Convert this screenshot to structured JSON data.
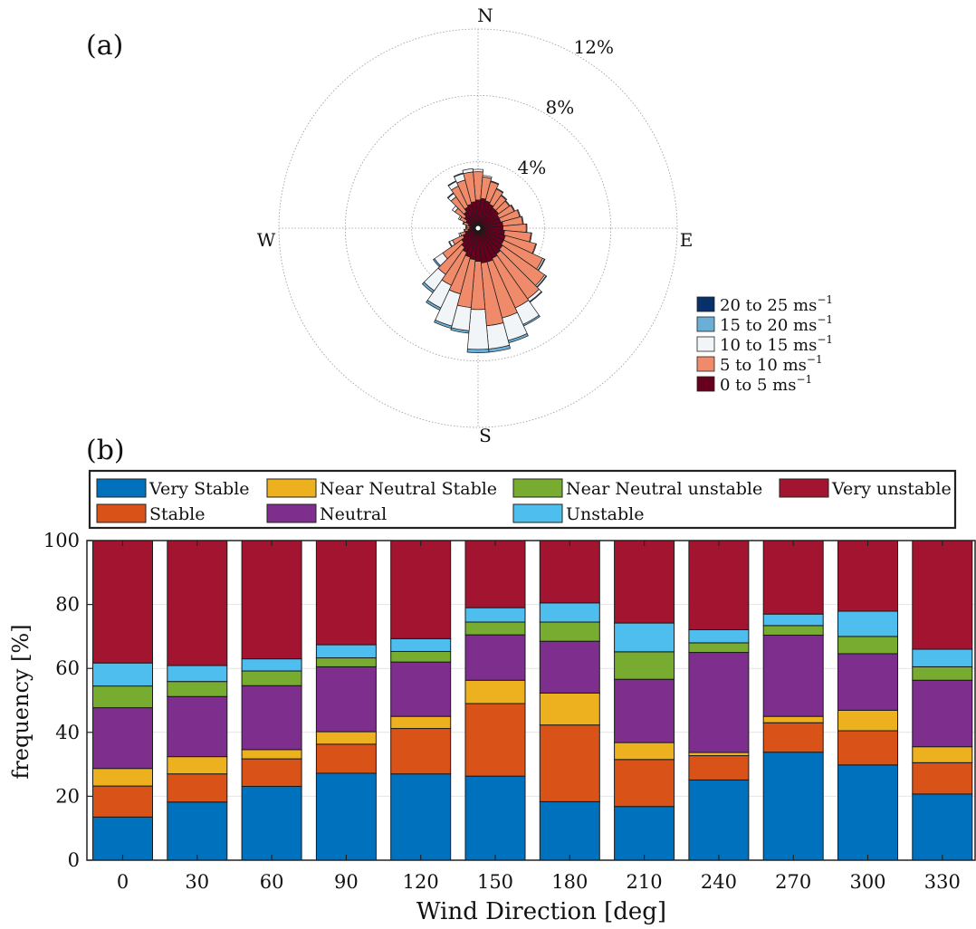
{
  "panel_a_label": "(a)",
  "panel_b_label": "(b)",
  "chart_data": [
    {
      "type": "wind-rose",
      "compass": {
        "north": "N",
        "east": "E",
        "south": "S",
        "west": "W"
      },
      "radial_ticks": [
        4,
        8,
        12
      ],
      "radial_tick_labels": [
        "4%",
        "8%",
        "12%"
      ],
      "radial_max": 12,
      "sector_width_deg": 10,
      "legend": [
        {
          "label": "20 to 25 ms",
          "sup": "−1",
          "color": "#08306b"
        },
        {
          "label": "15 to 20 ms",
          "sup": "−1",
          "color": "#6baed6"
        },
        {
          "label": "10 to 15 ms",
          "sup": "−1",
          "color": "#f2f5f8"
        },
        {
          "label": "5 to 10 ms",
          "sup": "−1",
          "color": "#ef8a6a"
        },
        {
          "label": "0 to 5 ms",
          "sup": "−1",
          "color": "#67001f"
        }
      ],
      "bin_order_from_center": [
        "0 to 5",
        "5 to 10",
        "10 to 15",
        "15 to 20",
        "20 to 25"
      ],
      "bin_colors_from_center": [
        "#67001f",
        "#ef8a6a",
        "#f2f5f8",
        "#6baed6",
        "#08306b"
      ],
      "sectors": [
        {
          "dir": 0,
          "cumulative": [
            1.7,
            3.4,
            3.55,
            3.55,
            3.55
          ]
        },
        {
          "dir": 10,
          "cumulative": [
            1.8,
            3.1,
            3.2,
            3.2,
            3.2
          ]
        },
        {
          "dir": 20,
          "cumulative": [
            1.7,
            2.9,
            2.95,
            2.95,
            2.95
          ]
        },
        {
          "dir": 30,
          "cumulative": [
            1.6,
            2.6,
            2.65,
            2.65,
            2.65
          ]
        },
        {
          "dir": 40,
          "cumulative": [
            1.5,
            2.4,
            2.45,
            2.45,
            2.45
          ]
        },
        {
          "dir": 50,
          "cumulative": [
            1.5,
            2.3,
            2.35,
            2.35,
            2.35
          ]
        },
        {
          "dir": 60,
          "cumulative": [
            1.4,
            2.4,
            2.45,
            2.45,
            2.45
          ]
        },
        {
          "dir": 70,
          "cumulative": [
            1.4,
            2.6,
            2.65,
            2.65,
            2.65
          ]
        },
        {
          "dir": 80,
          "cumulative": [
            1.5,
            2.7,
            2.75,
            2.75,
            2.75
          ]
        },
        {
          "dir": 90,
          "cumulative": [
            1.5,
            2.9,
            2.95,
            2.95,
            2.95
          ]
        },
        {
          "dir": 100,
          "cumulative": [
            1.6,
            3.2,
            3.25,
            3.25,
            3.25
          ]
        },
        {
          "dir": 110,
          "cumulative": [
            1.7,
            3.6,
            3.65,
            3.65,
            3.65
          ]
        },
        {
          "dir": 120,
          "cumulative": [
            1.7,
            4.3,
            4.4,
            4.45,
            4.45
          ]
        },
        {
          "dir": 130,
          "cumulative": [
            1.8,
            4.9,
            5.0,
            5.05,
            5.05
          ]
        },
        {
          "dir": 140,
          "cumulative": [
            1.9,
            5.2,
            5.4,
            5.45,
            5.45
          ]
        },
        {
          "dir": 150,
          "cumulative": [
            2.0,
            5.3,
            6.4,
            6.5,
            6.5
          ]
        },
        {
          "dir": 160,
          "cumulative": [
            2.1,
            5.6,
            7.0,
            7.15,
            7.15
          ]
        },
        {
          "dir": 170,
          "cumulative": [
            2.1,
            5.9,
            7.3,
            7.5,
            7.5
          ]
        },
        {
          "dir": 180,
          "cumulative": [
            2.0,
            4.9,
            7.3,
            7.5,
            7.5
          ]
        },
        {
          "dir": 190,
          "cumulative": [
            1.9,
            4.8,
            6.2,
            6.35,
            6.35
          ]
        },
        {
          "dir": 200,
          "cumulative": [
            1.8,
            4.1,
            6.1,
            6.25,
            6.25
          ]
        },
        {
          "dir": 210,
          "cumulative": [
            1.6,
            3.8,
            5.3,
            5.45,
            5.45
          ]
        },
        {
          "dir": 220,
          "cumulative": [
            1.4,
            3.4,
            4.6,
            4.75,
            4.75
          ]
        },
        {
          "dir": 230,
          "cumulative": [
            1.2,
            2.6,
            3.2,
            3.3,
            3.3
          ]
        },
        {
          "dir": 240,
          "cumulative": [
            1.0,
            1.7,
            1.9,
            1.95,
            1.95
          ]
        },
        {
          "dir": 250,
          "cumulative": [
            0.8,
            1.1,
            1.2,
            1.2,
            1.2
          ]
        },
        {
          "dir": 260,
          "cumulative": [
            0.6,
            0.8,
            0.85,
            0.85,
            0.85
          ]
        },
        {
          "dir": 270,
          "cumulative": [
            0.5,
            0.7,
            0.75,
            0.75,
            0.75
          ]
        },
        {
          "dir": 280,
          "cumulative": [
            0.5,
            0.7,
            0.75,
            0.75,
            0.75
          ]
        },
        {
          "dir": 290,
          "cumulative": [
            0.6,
            0.9,
            0.95,
            0.95,
            0.95
          ]
        },
        {
          "dir": 300,
          "cumulative": [
            0.8,
            1.2,
            1.3,
            1.3,
            1.3
          ]
        },
        {
          "dir": 310,
          "cumulative": [
            1.0,
            1.7,
            1.9,
            1.9,
            1.9
          ]
        },
        {
          "dir": 320,
          "cumulative": [
            1.2,
            2.3,
            2.55,
            2.6,
            2.6
          ]
        },
        {
          "dir": 330,
          "cumulative": [
            1.4,
            2.8,
            3.1,
            3.15,
            3.15
          ]
        },
        {
          "dir": 340,
          "cumulative": [
            1.5,
            3.0,
            3.4,
            3.45,
            3.45
          ]
        },
        {
          "dir": 350,
          "cumulative": [
            1.6,
            3.4,
            3.6,
            3.6,
            3.6
          ]
        }
      ]
    },
    {
      "type": "bar",
      "stacked": true,
      "xlabel": "Wind Direction [deg]",
      "ylabel": "frequency [%]",
      "ylim": [
        0,
        100
      ],
      "yticks": [
        0,
        20,
        40,
        60,
        80,
        100
      ],
      "categories": [
        "0",
        "30",
        "60",
        "90",
        "120",
        "150",
        "180",
        "210",
        "240",
        "270",
        "300",
        "330"
      ],
      "grid": true,
      "legend_location": "top, outside, 4 columns",
      "legend_order": [
        "Very Stable",
        "Stable",
        "Near Neutral Stable",
        "Neutral",
        "Near Neutral unstable",
        "Unstable",
        "Very unstable"
      ],
      "series": [
        {
          "name": "Very Stable",
          "color": "#0072bd",
          "values": [
            13.5,
            18.2,
            23.1,
            27.2,
            27.0,
            26.3,
            18.3,
            16.8,
            25.1,
            33.8,
            29.8,
            20.7
          ]
        },
        {
          "name": "Stable",
          "color": "#d95319",
          "values": [
            9.7,
            8.8,
            8.6,
            9.1,
            14.2,
            22.7,
            24.0,
            14.7,
            7.6,
            9.2,
            10.7,
            9.8
          ]
        },
        {
          "name": "Near Neutral Stable",
          "color": "#edb120",
          "values": [
            5.5,
            5.4,
            2.9,
            3.9,
            3.8,
            7.3,
            10.0,
            5.3,
            1.0,
            2.0,
            6.4,
            5.0
          ]
        },
        {
          "name": "Neutral",
          "color": "#7e2f8e",
          "values": [
            19.0,
            18.8,
            20.0,
            20.3,
            17.0,
            14.2,
            16.2,
            19.8,
            31.3,
            25.4,
            17.7,
            20.8
          ]
        },
        {
          "name": "Near Neutral unstable",
          "color": "#77ac30",
          "values": [
            6.8,
            4.7,
            4.6,
            2.8,
            3.3,
            4.0,
            6.0,
            8.6,
            3.0,
            3.0,
            5.4,
            4.2
          ]
        },
        {
          "name": "Unstable",
          "color": "#4dbeee",
          "values": [
            7.2,
            5.0,
            3.8,
            4.1,
            4.0,
            4.5,
            6.0,
            9.0,
            4.1,
            3.6,
            7.9,
            5.5
          ]
        },
        {
          "name": "Very unstable",
          "color": "#a2142f",
          "values": [
            38.3,
            39.1,
            37.0,
            32.6,
            30.7,
            21.0,
            19.5,
            25.8,
            27.9,
            23.0,
            22.1,
            34.0
          ]
        }
      ]
    }
  ]
}
